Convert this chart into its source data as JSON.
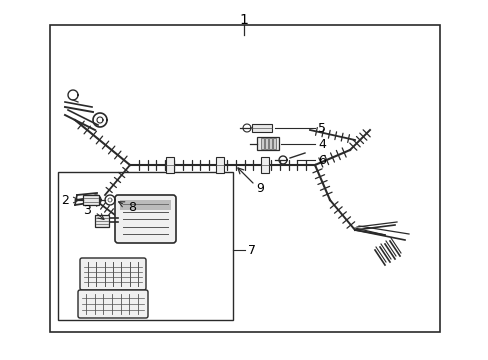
{
  "background_color": "#ffffff",
  "border_color": "#000000",
  "text_color": "#000000",
  "fig_width": 4.89,
  "fig_height": 3.6,
  "dpi": 100,
  "line_color": "#2a2a2a",
  "gray_color": "#555555",
  "light_gray": "#aaaaaa"
}
